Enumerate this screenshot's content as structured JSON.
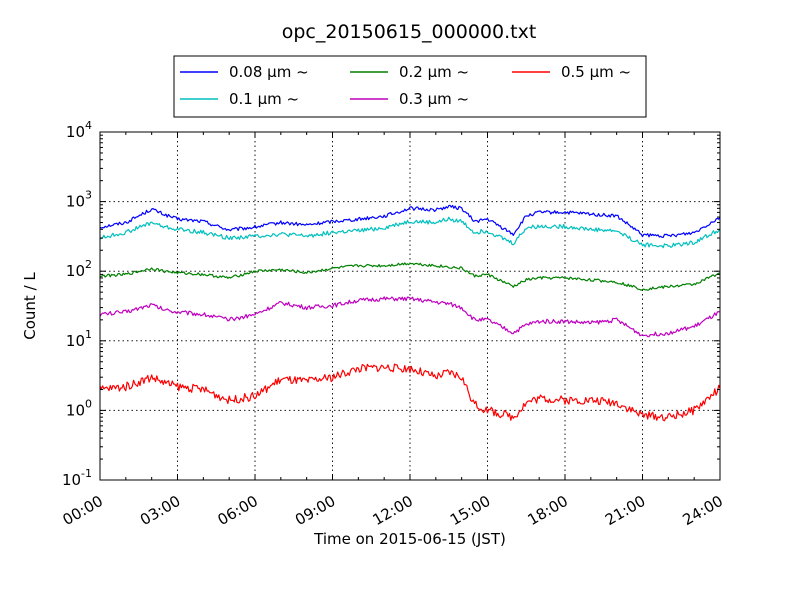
{
  "chart_data": {
    "type": "line",
    "title": "opc_20150615_000000.txt",
    "xlabel": "Time on 2015-06-15 (JST)",
    "ylabel": "Count / L",
    "xscale": "linear",
    "yscale": "log",
    "xlim": [
      "00:00",
      "24:00"
    ],
    "ylim": [
      0.1,
      10000
    ],
    "grid": true,
    "legend_placement": "top (above plot)",
    "x_ticks": [
      "00:00",
      "03:00",
      "06:00",
      "09:00",
      "12:00",
      "15:00",
      "18:00",
      "21:00",
      "24:00"
    ],
    "y_ticks": [
      {
        "base": "10",
        "exp": "-1",
        "value": 0.1
      },
      {
        "base": "10",
        "exp": "0",
        "value": 1
      },
      {
        "base": "10",
        "exp": "1",
        "value": 10
      },
      {
        "base": "10",
        "exp": "2",
        "value": 100
      },
      {
        "base": "10",
        "exp": "3",
        "value": 1000
      },
      {
        "base": "10",
        "exp": "4",
        "value": 10000
      }
    ],
    "x": [
      "00:00",
      "01:00",
      "02:00",
      "02:30",
      "03:00",
      "04:00",
      "05:00",
      "06:00",
      "07:00",
      "08:00",
      "09:00",
      "10:00",
      "11:00",
      "11:30",
      "12:00",
      "13:00",
      "13:30",
      "14:00",
      "14:30",
      "15:00",
      "16:00",
      "16:30",
      "17:00",
      "18:00",
      "19:00",
      "20:00",
      "21:00",
      "22:00",
      "23:00",
      "24:00"
    ],
    "series": [
      {
        "name": "0.08 μm ~",
        "color": "#0000ff",
        "values": [
          430,
          500,
          780,
          650,
          560,
          520,
          390,
          430,
          500,
          460,
          520,
          560,
          620,
          700,
          800,
          760,
          850,
          800,
          520,
          560,
          340,
          620,
          700,
          700,
          660,
          620,
          330,
          320,
          360,
          600
        ]
      },
      {
        "name": "0.1 μm ~",
        "color": "#00bfbf",
        "values": [
          300,
          360,
          500,
          430,
          400,
          360,
          300,
          320,
          340,
          320,
          360,
          380,
          420,
          470,
          520,
          500,
          560,
          520,
          360,
          380,
          250,
          420,
          440,
          440,
          400,
          380,
          240,
          230,
          260,
          400
        ]
      },
      {
        "name": "0.2 μm ~",
        "color": "#008000",
        "values": [
          85,
          90,
          110,
          100,
          95,
          90,
          80,
          100,
          105,
          95,
          110,
          120,
          120,
          125,
          130,
          120,
          115,
          110,
          85,
          90,
          60,
          75,
          80,
          80,
          75,
          70,
          55,
          60,
          65,
          95
        ]
      },
      {
        "name": "0.3 μm ~",
        "color": "#bf00bf",
        "values": [
          24,
          26,
          33,
          28,
          26,
          24,
          20,
          24,
          35,
          30,
          32,
          38,
          40,
          40,
          40,
          36,
          34,
          30,
          20,
          20,
          13,
          17,
          19,
          19,
          18,
          20,
          12,
          13,
          16,
          26
        ]
      },
      {
        "name": "0.5 μm ~",
        "color": "#ff0000",
        "values": [
          2.0,
          2.2,
          3.0,
          2.5,
          2.2,
          2.0,
          1.4,
          1.6,
          2.8,
          2.6,
          3.0,
          4.0,
          4.2,
          4.0,
          4.0,
          3.0,
          3.5,
          3.0,
          1.2,
          1.0,
          0.8,
          1.3,
          1.5,
          1.4,
          1.4,
          1.3,
          0.85,
          0.8,
          1.0,
          2.1
        ]
      }
    ]
  }
}
